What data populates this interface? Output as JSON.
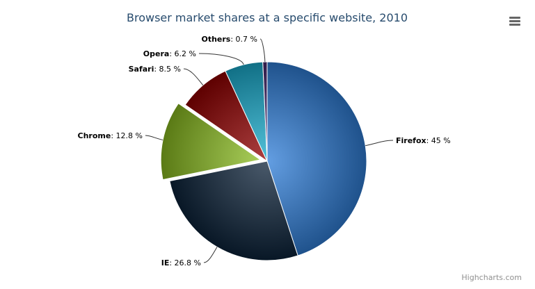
{
  "chart_data": {
    "type": "pie",
    "title": "Browser market shares at a specific website, 2010",
    "unit": "%",
    "slices": [
      {
        "name": "Firefox",
        "value": 45,
        "color": "#2f7ed8",
        "sliced": false
      },
      {
        "name": "IE",
        "value": 26.8,
        "color": "#0d233a",
        "sliced": false
      },
      {
        "name": "Chrome",
        "value": 12.8,
        "color": "#8bbc21",
        "sliced": true
      },
      {
        "name": "Safari",
        "value": 8.5,
        "color": "#910000",
        "sliced": false
      },
      {
        "name": "Opera",
        "value": 6.2,
        "color": "#1aadce",
        "sliced": false
      },
      {
        "name": "Others",
        "value": 0.7,
        "color": "#492970",
        "sliced": false
      }
    ]
  },
  "credits": "Highcharts.com",
  "menu_icon": "hamburger-menu-icon"
}
